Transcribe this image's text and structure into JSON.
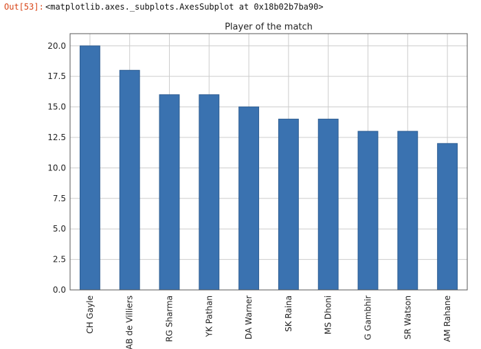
{
  "cell_output": {
    "prompt": "Out[53]:",
    "repr": "<matplotlib.axes._subplots.AxesSubplot at 0x18b02b7ba90>"
  },
  "colors": {
    "bar": "#3a72b0",
    "bar_edge": "#2e5d91",
    "grid": "#cccccc",
    "prompt": "#d84315"
  },
  "chart_data": {
    "type": "bar",
    "title": "Player of the match",
    "xlabel": "",
    "ylabel": "",
    "ylim": [
      0,
      21
    ],
    "yticks": [
      0.0,
      2.5,
      5.0,
      7.5,
      10.0,
      12.5,
      15.0,
      17.5,
      20.0
    ],
    "ytick_labels": [
      "0.0",
      "2.5",
      "5.0",
      "7.5",
      "10.0",
      "12.5",
      "15.0",
      "17.5",
      "20.0"
    ],
    "grid": true,
    "categories": [
      "CH Gayle",
      "AB de Villiers",
      "RG Sharma",
      "YK Pathan",
      "DA Warner",
      "SK Raina",
      "MS Dhoni",
      "G Gambhir",
      "SR Watson",
      "AM Rahane"
    ],
    "values": [
      20,
      18,
      16,
      16,
      15,
      14,
      14,
      13,
      13,
      12
    ]
  }
}
